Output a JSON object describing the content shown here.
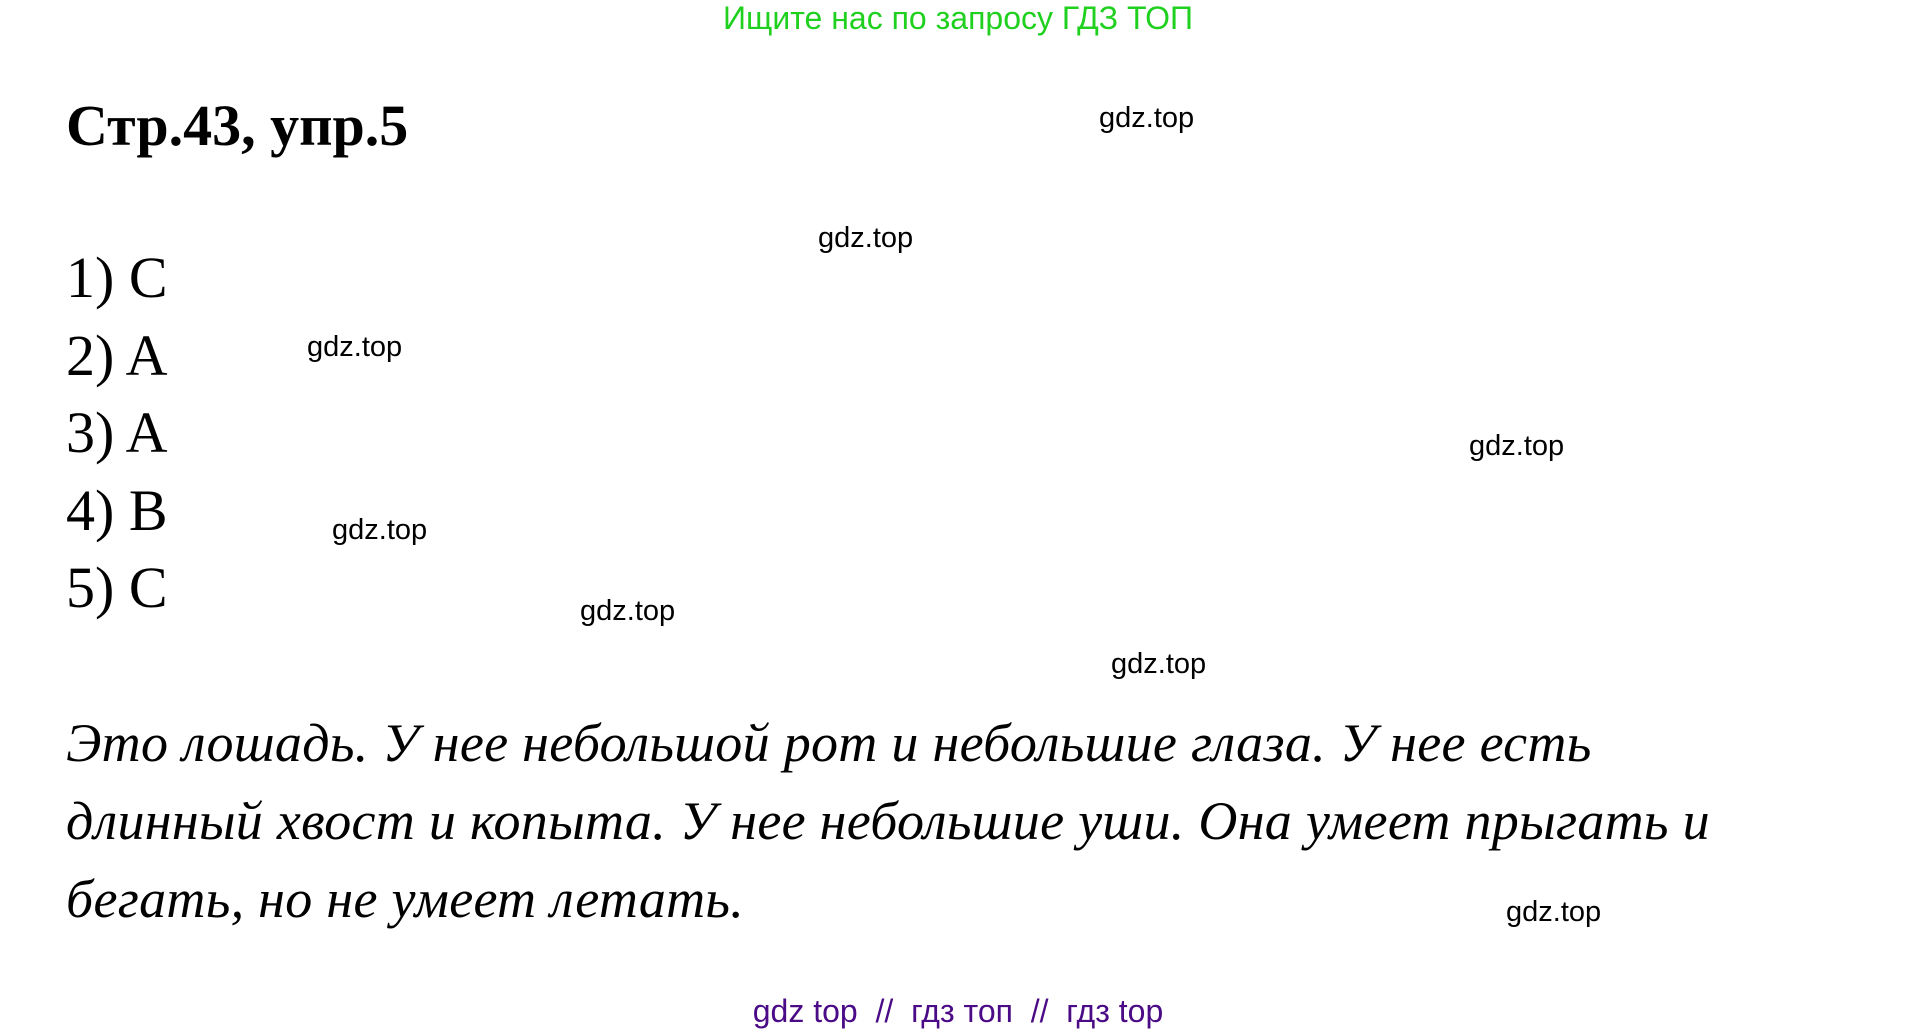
{
  "banner": "Ищите нас по запросу ГДЗ ТОП",
  "title": "Стр.43, упр.5",
  "watermarks": [
    "gdz.top",
    "gdz.top",
    "gdz.top",
    "gdz.top",
    "gdz.top",
    "gdz.top",
    "gdz.top",
    "gdz.top"
  ],
  "answers": [
    "1) C",
    "2) A",
    "3) A",
    "4) B",
    "5) C"
  ],
  "paragraph_lines": [
    "Это лошадь. У нее небольшой рот и небольшие глаза. У нее есть",
    "длинный хвост и копыта. У нее небольшие уши. Она умеет прыгать и",
    "бегать, но не умеет летать."
  ],
  "footer": "gdz top  //  гдз топ  //  гдз top",
  "colors": {
    "banner": "#1fd01f",
    "footer": "#4b0a86"
  }
}
